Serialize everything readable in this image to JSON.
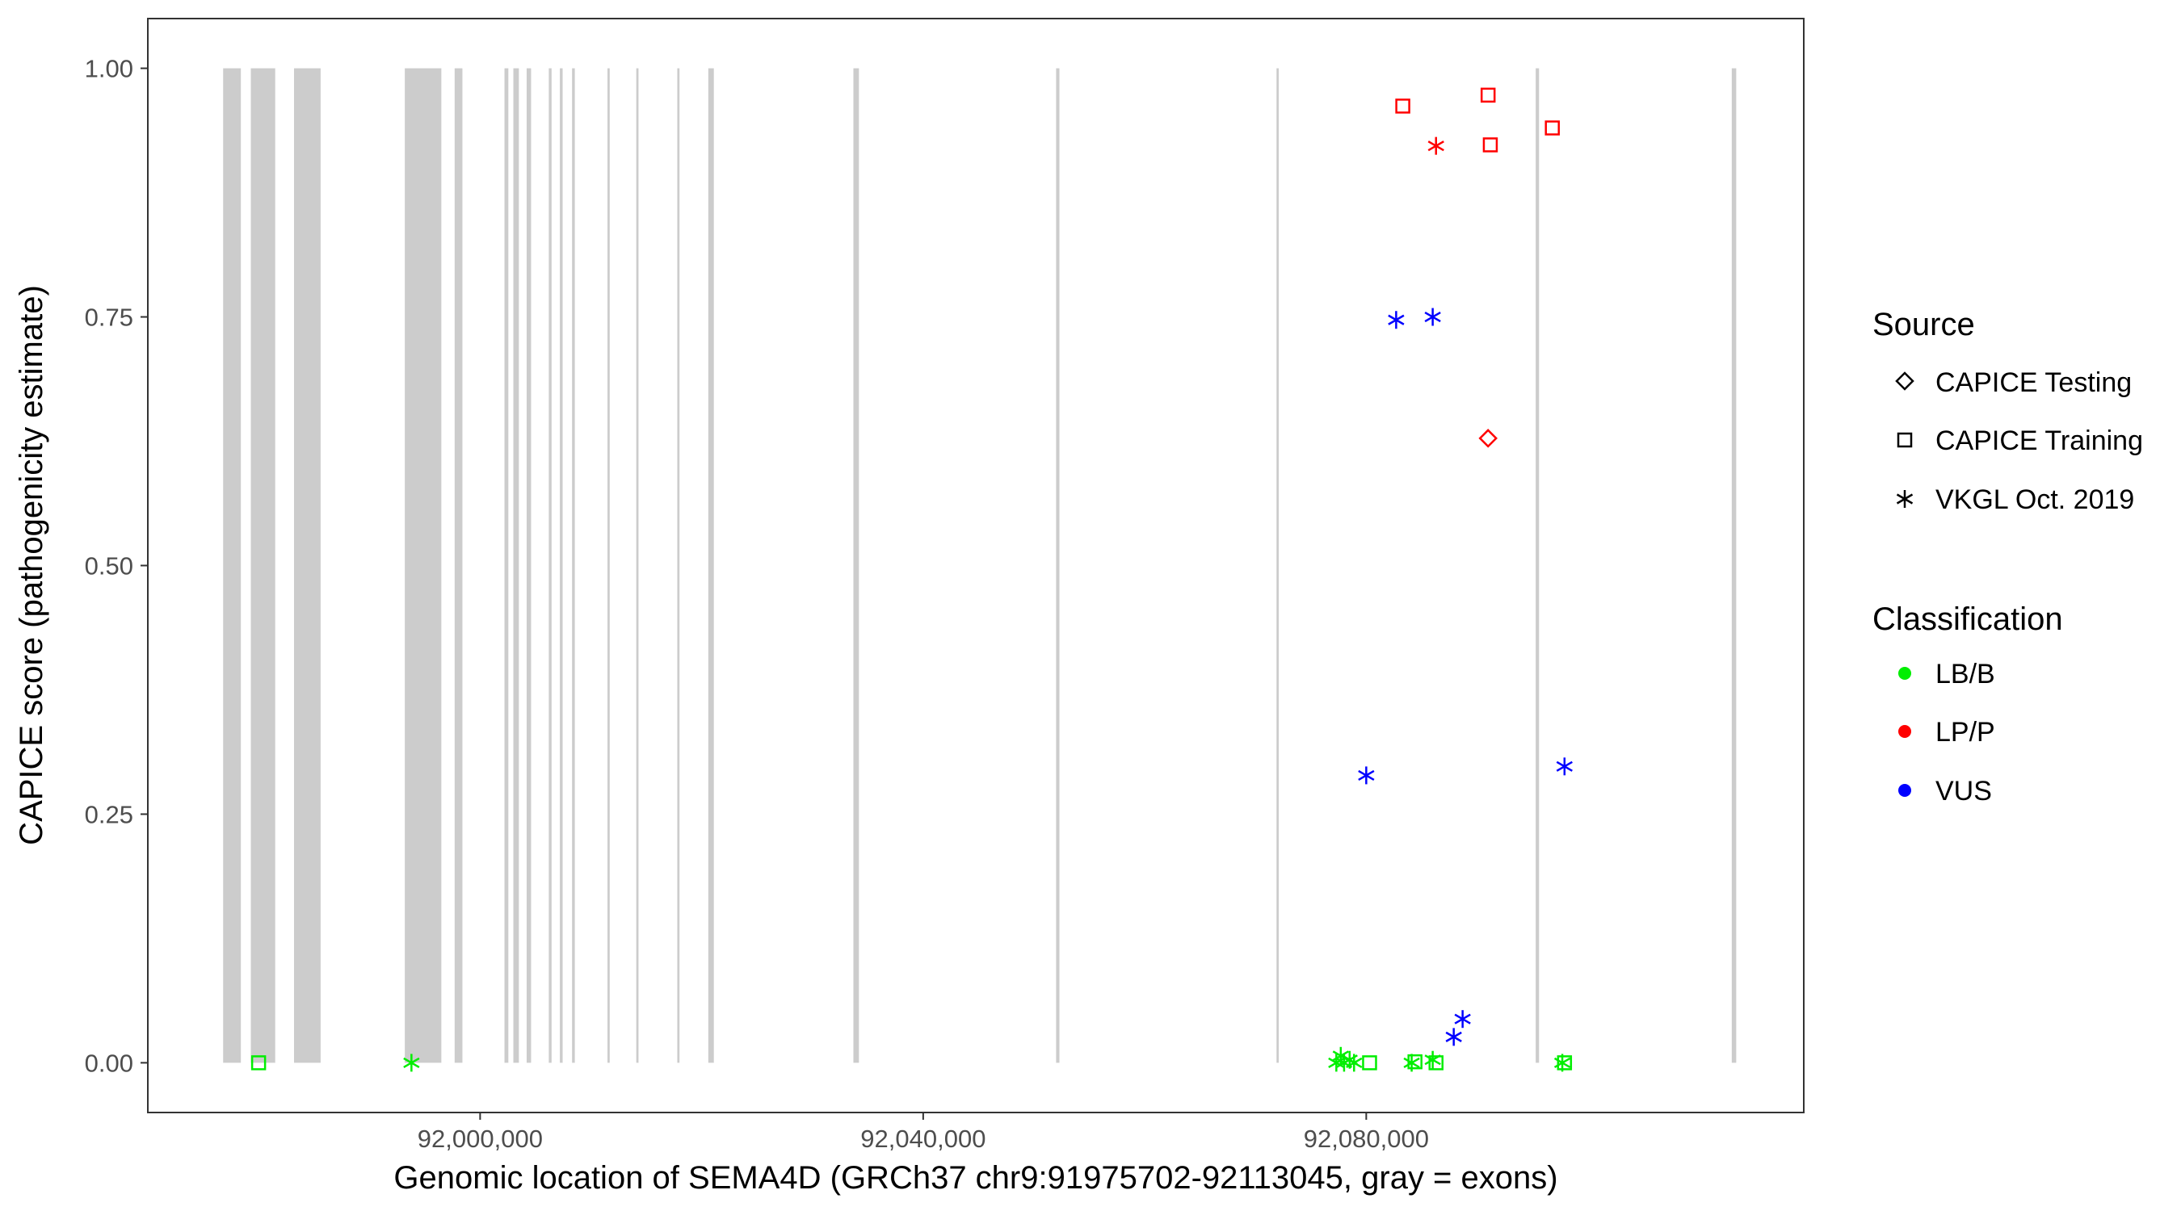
{
  "chart_data": {
    "type": "scatter",
    "title": "",
    "xlabel": "Genomic location of SEMA4D (GRCh37 chr9:91975702-92113045, gray = exons)",
    "ylabel": "CAPICE score (pathogenicity estimate)",
    "xlim": [
      91970000,
      92119500
    ],
    "ylim": [
      -0.05,
      1.05
    ],
    "x_ticks": [
      {
        "value": 92000000,
        "label": "92,000,000"
      },
      {
        "value": 92040000,
        "label": "92,040,000"
      },
      {
        "value": 92080000,
        "label": "92,080,000"
      }
    ],
    "y_ticks": [
      {
        "value": 0.0,
        "label": "0.00"
      },
      {
        "value": 0.25,
        "label": "0.25"
      },
      {
        "value": 0.5,
        "label": "0.50"
      },
      {
        "value": 0.75,
        "label": "0.75"
      },
      {
        "value": 1.0,
        "label": "1.00"
      }
    ],
    "grid": false,
    "exons": [
      [
        91976800,
        91978400
      ],
      [
        91979300,
        91981500
      ],
      [
        91983200,
        91985600
      ],
      [
        91993200,
        91996500
      ],
      [
        91997700,
        91998400
      ],
      [
        92002200,
        92002550
      ],
      [
        92003000,
        92003500
      ],
      [
        92004200,
        92004600
      ],
      [
        92006200,
        92006450
      ],
      [
        92007200,
        92007450
      ],
      [
        92008300,
        92008550
      ],
      [
        92011500,
        92011700
      ],
      [
        92014100,
        92014300
      ],
      [
        92017800,
        92018000
      ],
      [
        92020600,
        92021100
      ],
      [
        92033700,
        92034200
      ],
      [
        92052000,
        92052300
      ],
      [
        92071900,
        92072100
      ],
      [
        92095300,
        92095600
      ],
      [
        92113000,
        92113400
      ]
    ],
    "legend": {
      "position": "right",
      "source": {
        "title": "Source",
        "entries": [
          {
            "label": "CAPICE Testing",
            "shape": "diamond"
          },
          {
            "label": "CAPICE Training",
            "shape": "square"
          },
          {
            "label": "VKGL Oct. 2019",
            "shape": "asterisk"
          }
        ]
      },
      "classification": {
        "title": "Classification",
        "entries": [
          {
            "label": "LB/B",
            "color": "#00ee00"
          },
          {
            "label": "LP/P",
            "color": "#ff0000"
          },
          {
            "label": "VUS",
            "color": "#0000ff"
          }
        ]
      }
    },
    "points": [
      {
        "x": 91980000,
        "y": 0.0,
        "source": "CAPICE Training",
        "classification": "LB/B"
      },
      {
        "x": 91993800,
        "y": 0.0,
        "source": "VKGL Oct. 2019",
        "classification": "LB/B"
      },
      {
        "x": 92077300,
        "y": 0.0,
        "source": "VKGL Oct. 2019",
        "classification": "LB/B"
      },
      {
        "x": 92077700,
        "y": 0.007,
        "source": "VKGL Oct. 2019",
        "classification": "LB/B"
      },
      {
        "x": 92078000,
        "y": 0.0,
        "source": "VKGL Oct. 2019",
        "classification": "LB/B"
      },
      {
        "x": 92078500,
        "y": 0.003,
        "source": "VKGL Oct. 2019",
        "classification": "LB/B"
      },
      {
        "x": 92078900,
        "y": 0.0,
        "source": "VKGL Oct. 2019",
        "classification": "LB/B"
      },
      {
        "x": 92080300,
        "y": 0.0,
        "source": "CAPICE Training",
        "classification": "LB/B"
      },
      {
        "x": 92084100,
        "y": 0.0,
        "source": "VKGL Oct. 2019",
        "classification": "LB/B"
      },
      {
        "x": 92084400,
        "y": 0.001,
        "source": "CAPICE Training",
        "classification": "LB/B"
      },
      {
        "x": 92086000,
        "y": 0.003,
        "source": "VKGL Oct. 2019",
        "classification": "LB/B"
      },
      {
        "x": 92086300,
        "y": 0.0,
        "source": "CAPICE Training",
        "classification": "LB/B"
      },
      {
        "x": 92097700,
        "y": 0.0,
        "source": "VKGL Oct. 2019",
        "classification": "LB/B"
      },
      {
        "x": 92097900,
        "y": 0.0,
        "source": "CAPICE Training",
        "classification": "LB/B"
      },
      {
        "x": 92080000,
        "y": 0.289,
        "source": "VKGL Oct. 2019",
        "classification": "VUS"
      },
      {
        "x": 92082700,
        "y": 0.747,
        "source": "VKGL Oct. 2019",
        "classification": "VUS"
      },
      {
        "x": 92086000,
        "y": 0.75,
        "source": "VKGL Oct. 2019",
        "classification": "VUS"
      },
      {
        "x": 92087900,
        "y": 0.026,
        "source": "VKGL Oct. 2019",
        "classification": "VUS"
      },
      {
        "x": 92088700,
        "y": 0.044,
        "source": "VKGL Oct. 2019",
        "classification": "VUS"
      },
      {
        "x": 92097900,
        "y": 0.298,
        "source": "VKGL Oct. 2019",
        "classification": "VUS"
      },
      {
        "x": 92083300,
        "y": 0.962,
        "source": "CAPICE Training",
        "classification": "LP/P"
      },
      {
        "x": 92086300,
        "y": 0.922,
        "source": "VKGL Oct. 2019",
        "classification": "LP/P"
      },
      {
        "x": 92091000,
        "y": 0.973,
        "source": "CAPICE Training",
        "classification": "LP/P"
      },
      {
        "x": 92091200,
        "y": 0.923,
        "source": "CAPICE Training",
        "classification": "LP/P"
      },
      {
        "x": 92091000,
        "y": 0.628,
        "source": "CAPICE Testing",
        "classification": "LP/P"
      },
      {
        "x": 92096800,
        "y": 0.94,
        "source": "CAPICE Training",
        "classification": "LP/P"
      }
    ]
  }
}
